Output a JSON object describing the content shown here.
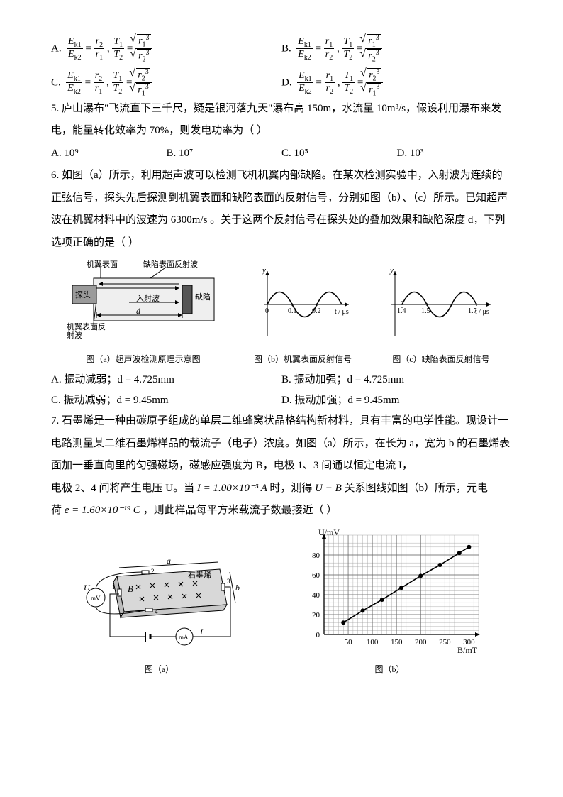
{
  "q4": {
    "opts": {
      "A": {
        "letter": "A.",
        "lhs1n": "E",
        "lhs1s": "k1",
        "lhs1d": "E",
        "lhs1ds": "k2",
        "rhs1n": "r",
        "rhs1ns": "2",
        "rhs1d": "r",
        "rhs1ds": "1",
        "lhs2n": "T",
        "lhs2ns": "1",
        "lhs2d": "T",
        "lhs2ds": "2",
        "rt_n": "r",
        "rt_ns": "1",
        "rt_e": "3",
        "rt_d": "r",
        "rt_ds": "2",
        "rt_de": "3"
      },
      "B": {
        "letter": "B.",
        "lhs1n": "E",
        "lhs1s": "k1",
        "lhs1d": "E",
        "lhs1ds": "k2",
        "rhs1n": "r",
        "rhs1ns": "1",
        "rhs1d": "r",
        "rhs1ds": "2",
        "lhs2n": "T",
        "lhs2ns": "1",
        "lhs2d": "T",
        "lhs2ds": "2",
        "rt_n": "r",
        "rt_ns": "1",
        "rt_e": "3",
        "rt_d": "r",
        "rt_ds": "2",
        "rt_de": "3"
      },
      "C": {
        "letter": "C.",
        "lhs1n": "E",
        "lhs1s": "k1",
        "lhs1d": "E",
        "lhs1ds": "k2",
        "rhs1n": "r",
        "rhs1ns": "2",
        "rhs1d": "r",
        "rhs1ds": "1",
        "lhs2n": "T",
        "lhs2ns": "1",
        "lhs2d": "T",
        "lhs2ds": "2",
        "rt_n": "r",
        "rt_ns": "2",
        "rt_e": "3",
        "rt_d": "r",
        "rt_ds": "1",
        "rt_de": "3"
      },
      "D": {
        "letter": "D.",
        "lhs1n": "E",
        "lhs1s": "k1",
        "lhs1d": "E",
        "lhs1ds": "k2",
        "rhs1n": "r",
        "rhs1ns": "1",
        "rhs1d": "r",
        "rhs1ds": "2",
        "lhs2n": "T",
        "lhs2ns": "1",
        "lhs2d": "T",
        "lhs2ds": "2",
        "rt_n": "r",
        "rt_ns": "2",
        "rt_e": "3",
        "rt_d": "r",
        "rt_ds": "1",
        "rt_de": "3"
      }
    }
  },
  "q5": {
    "stem": "5. 庐山瀑布\"飞流直下三千尺，疑是银河落九天\"瀑布高 150m，水流量 10m³/s，假设利用瀑布来发电，能量转化效率为 70%，则发电功率为（    ）",
    "opts": {
      "A": "A.  10⁹",
      "B": "B.  10⁷",
      "C": "C.  10⁵",
      "D": "D.  10³"
    }
  },
  "q6": {
    "stem": "6. 如图（a）所示，利用超声波可以检测飞机机翼内部缺陷。在某次检测实验中，入射波为连续的正弦信号，探头先后探测到机翼表面和缺陷表面的反射信号，分别如图（b）、（c）所示。已知超声波在机翼材料中的波速为 6300m/s 。关于这两个反射信号在探头处的叠加效果和缺陷深度 d，下列选项正确的是（    ）",
    "figA": {
      "caption": "图（a）超声波检测原理示意图",
      "lbl_surface": "机翼表面",
      "lbl_defectWave": "缺陷表面反射波",
      "lbl_probe": "探头",
      "lbl_defect": "缺陷",
      "lbl_incident": "入射波",
      "lbl_surfaceWave": "机翼表面反\n射波",
      "d_label": "d"
    },
    "figB": {
      "caption": "图（b）机翼表面反射信号",
      "ylabel": "y",
      "xlabel": "t / μs",
      "ticks": [
        "0",
        "0.1",
        "0.2"
      ],
      "wave": {
        "period_us": 0.2,
        "phase": "sin_pos_first",
        "amplitude": 28,
        "color": "#000",
        "stroke": 1.6
      },
      "axis_color": "#000"
    },
    "figC": {
      "caption": "图（c）缺陷表面反射信号",
      "ylabel": "y",
      "xlabel": "t / μs",
      "ticks": [
        "1.4",
        "1.5",
        "1.7"
      ],
      "wave": {
        "period_us": 0.2,
        "phase": "sin_pos_first_offset",
        "amplitude": 28,
        "color": "#000",
        "stroke": 1.6
      },
      "axis_color": "#000"
    },
    "opts": {
      "A": "A.  振动减弱；d = 4.725mm",
      "B": "B.  振动加强；d = 4.725mm",
      "C": "C.  振动减弱；d = 9.45mm",
      "D": "D.  振动加强；d = 9.45mm"
    }
  },
  "q7": {
    "stem_p1": "7. 石墨烯是一种由碳原子组成的单层二维蜂窝状晶格结构新材料，具有丰富的电学性能。现设计一电路测量某二维石墨烯样品的载流子（电子）浓度。如图（a）所示，在长为 a，宽为 b 的石墨烯表面加一垂直向里的匀强磁场，磁感应强度为 B，电极 1、3 间通以恒定电流 I，",
    "stem_p2a": "电极 2、4 间将产生电压 U。当",
    "math_I": " I = 1.00×10⁻³ A ",
    "stem_p2b": "时，测得",
    "math_UB": " U − B ",
    "stem_p2c": "关系图线如图（b）所示，元电",
    "stem_p3a": "荷",
    "math_e": " e = 1.60×10⁻¹⁹ C ",
    "stem_p3b": "，则此样品每平方米载流子数最接近（    ）",
    "figA": {
      "caption": "图（a）",
      "labels": {
        "a": "a",
        "b": "b",
        "graphene": "石墨烯",
        "U": "U",
        "mV": "mV",
        "I": "I",
        "mA": "mA",
        "Bvar": "B",
        "n1": "1",
        "n2": "2",
        "n3": "3",
        "n4": "4"
      }
    },
    "figB": {
      "caption": "图（b）",
      "ylabel": "U/mV",
      "xlabel": "B/mT",
      "xticks": [
        50,
        100,
        150,
        200,
        250,
        300
      ],
      "yticks": [
        0,
        20,
        40,
        60,
        80
      ],
      "xlim": [
        0,
        320
      ],
      "ylim": [
        0,
        100
      ],
      "grid_color": "#9a9a9a",
      "minor_grid": true,
      "minor_step_x": 10,
      "minor_step_y": 4,
      "bg": "#ffffff",
      "line": {
        "points": [
          [
            40,
            12
          ],
          [
            80,
            24
          ],
          [
            120,
            35
          ],
          [
            160,
            47
          ],
          [
            200,
            59
          ],
          [
            240,
            70
          ],
          [
            280,
            82
          ],
          [
            300,
            88
          ]
        ],
        "color": "#000",
        "stroke": 1.6,
        "marker": "circle",
        "marker_size": 3,
        "marker_fill": "#000"
      }
    }
  }
}
